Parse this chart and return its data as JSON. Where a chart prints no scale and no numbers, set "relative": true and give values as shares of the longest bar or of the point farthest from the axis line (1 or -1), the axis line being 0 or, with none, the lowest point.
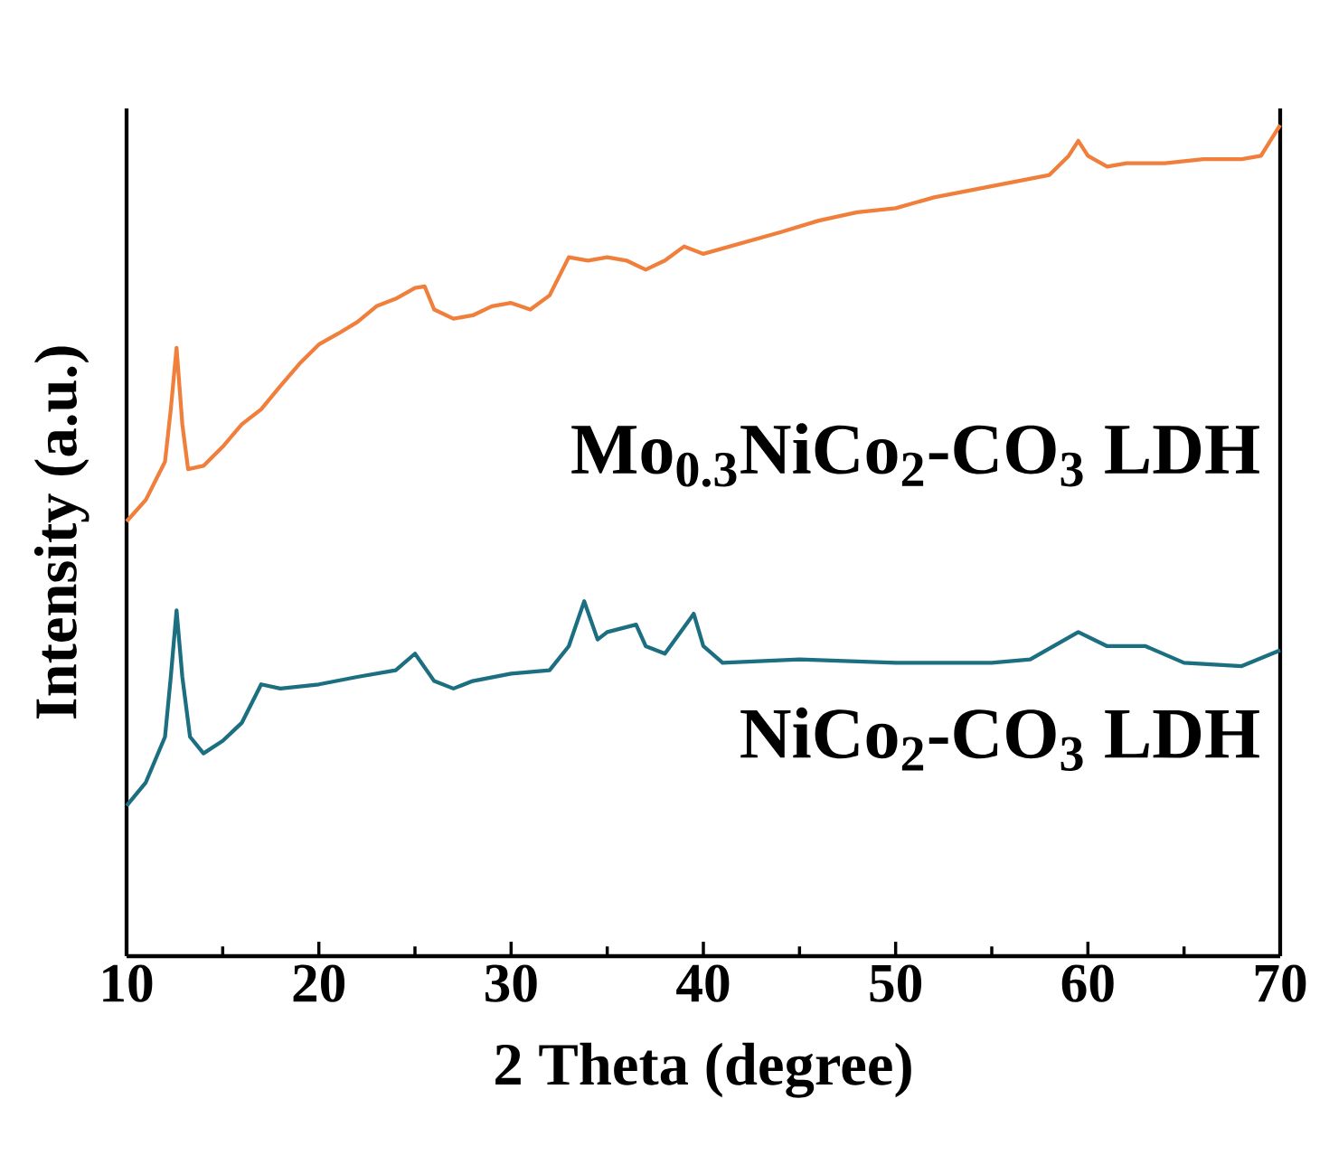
{
  "chart_data": {
    "type": "line",
    "relative": true,
    "xlabel": "2 Theta (degree)",
    "ylabel": "Intensity (a.u.)",
    "xlim": [
      10,
      70
    ],
    "xticks": [
      10,
      20,
      30,
      40,
      50,
      60,
      70
    ],
    "grid": false,
    "series": [
      {
        "name": "Mo$_{0.3}$NiCo$_{2}$-CO$_{3}$ LDH",
        "color": "#f07f3c",
        "x": [
          10,
          11,
          12,
          12.3,
          12.6,
          12.9,
          13.2,
          14,
          15,
          16,
          17,
          18,
          19,
          20,
          21,
          22,
          23,
          24,
          25,
          25.5,
          26,
          27,
          28,
          29,
          30,
          31,
          32,
          33,
          34,
          35,
          36,
          37,
          38,
          39,
          40,
          42,
          44,
          46,
          48,
          50,
          52,
          54,
          56,
          58,
          59,
          59.5,
          60,
          61,
          62,
          64,
          66,
          68,
          69,
          70
        ],
        "values": [
          0.523,
          0.549,
          0.595,
          0.658,
          0.732,
          0.64,
          0.586,
          0.59,
          0.613,
          0.64,
          0.658,
          0.686,
          0.713,
          0.736,
          0.749,
          0.763,
          0.782,
          0.791,
          0.804,
          0.806,
          0.778,
          0.767,
          0.771,
          0.782,
          0.786,
          0.778,
          0.795,
          0.841,
          0.837,
          0.841,
          0.837,
          0.826,
          0.837,
          0.854,
          0.845,
          0.858,
          0.871,
          0.885,
          0.895,
          0.9,
          0.913,
          0.922,
          0.931,
          0.94,
          0.963,
          0.981,
          0.963,
          0.95,
          0.954,
          0.954,
          0.959,
          0.959,
          0.963,
          1.0
        ]
      },
      {
        "name": "NiCo$_{2}$-CO$_{3}$ LDH",
        "color": "#1b6f80",
        "x": [
          10,
          11,
          12,
          12.3,
          12.6,
          12.9,
          13.3,
          14,
          15,
          16,
          17,
          18,
          20,
          22,
          24,
          25,
          26,
          27,
          28,
          30,
          32,
          33,
          33.8,
          34.5,
          35,
          36.5,
          37,
          38,
          39.5,
          40,
          41,
          45,
          50,
          55,
          57,
          59.5,
          61,
          63,
          65,
          68,
          70
        ],
        "values": [
          0.181,
          0.209,
          0.264,
          0.336,
          0.416,
          0.336,
          0.264,
          0.244,
          0.259,
          0.281,
          0.327,
          0.322,
          0.327,
          0.336,
          0.344,
          0.364,
          0.331,
          0.322,
          0.331,
          0.34,
          0.344,
          0.373,
          0.427,
          0.381,
          0.39,
          0.399,
          0.373,
          0.364,
          0.412,
          0.373,
          0.353,
          0.357,
          0.353,
          0.353,
          0.357,
          0.39,
          0.373,
          0.373,
          0.353,
          0.349,
          0.368
        ]
      }
    ]
  }
}
